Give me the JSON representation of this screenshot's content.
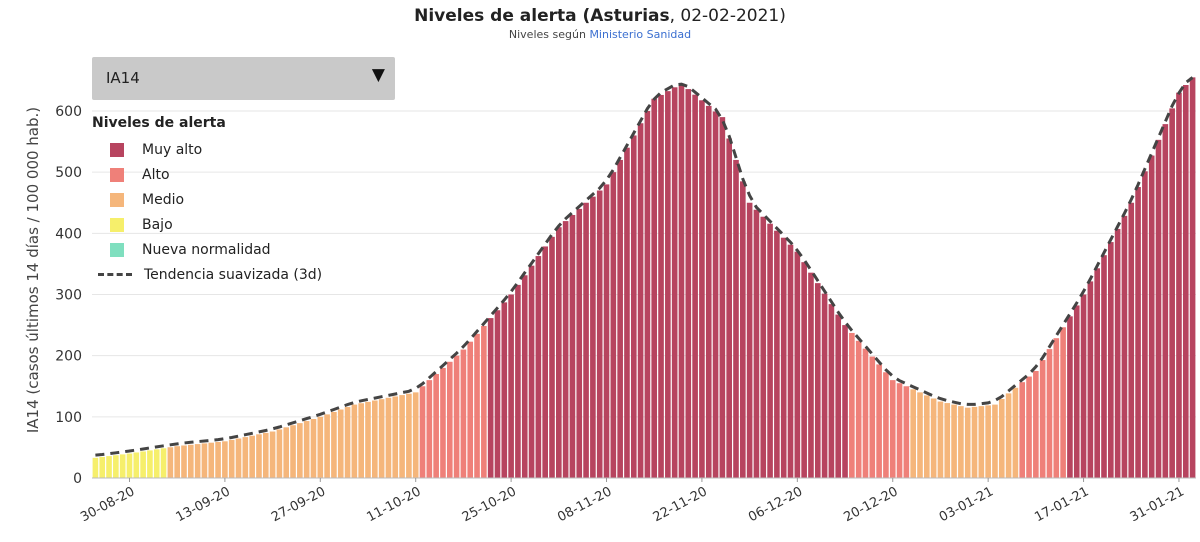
{
  "header": {
    "title_main": "Niveles de alerta (Asturias",
    "title_date": ", 02-02-2021)",
    "subtitle_prefix": "Niveles según ",
    "subtitle_link": "Ministerio Sanidad"
  },
  "dropdown": {
    "selected": "IA14"
  },
  "legend": {
    "heading": "Niveles de alerta",
    "items": [
      {
        "label": "Muy alto",
        "color": "#b7445f"
      },
      {
        "label": "Alto",
        "color": "#ef8079"
      },
      {
        "label": "Medio",
        "color": "#f5b67b"
      },
      {
        "label": "Bajo",
        "color": "#f6ef6b"
      },
      {
        "label": "Nueva normalidad",
        "color": "#7fdfbf"
      }
    ],
    "trend_label": "Tendencia suavizada (3d)"
  },
  "chart_data": {
    "type": "bar",
    "title": "Niveles de alerta (Asturias, 02-02-2021)",
    "subtitle": "Niveles según Ministerio Sanidad",
    "ylabel": "IA14 (casos últimos 14 días / 100 000 hab.)",
    "xlabel": "",
    "ylim": [
      0,
      650
    ],
    "yticks": [
      0,
      100,
      200,
      300,
      400,
      500,
      600
    ],
    "x_start": "2020-08-25",
    "x_end": "2021-02-02",
    "xtick_labels": [
      "30-08-20",
      "13-09-20",
      "27-09-20",
      "11-10-20",
      "25-10-20",
      "08-11-20",
      "22-11-20",
      "06-12-20",
      "20-12-20",
      "03-01-21",
      "17-01-21",
      "31-01-21"
    ],
    "anchors": [
      {
        "date": "2020-08-25",
        "value": 33
      },
      {
        "date": "2020-08-30",
        "value": 40
      },
      {
        "date": "2020-09-06",
        "value": 52
      },
      {
        "date": "2020-09-13",
        "value": 60
      },
      {
        "date": "2020-09-20",
        "value": 76
      },
      {
        "date": "2020-09-27",
        "value": 100
      },
      {
        "date": "2020-10-02",
        "value": 120
      },
      {
        "date": "2020-10-11",
        "value": 140
      },
      {
        "date": "2020-10-18",
        "value": 210
      },
      {
        "date": "2020-10-25",
        "value": 300
      },
      {
        "date": "2020-11-01",
        "value": 410
      },
      {
        "date": "2020-11-08",
        "value": 480
      },
      {
        "date": "2020-11-15",
        "value": 620
      },
      {
        "date": "2020-11-19",
        "value": 645
      },
      {
        "date": "2020-11-25",
        "value": 590
      },
      {
        "date": "2020-11-29",
        "value": 450
      },
      {
        "date": "2020-12-06",
        "value": 370
      },
      {
        "date": "2020-12-13",
        "value": 250
      },
      {
        "date": "2020-12-20",
        "value": 160
      },
      {
        "date": "2020-12-27",
        "value": 125
      },
      {
        "date": "2020-12-31",
        "value": 115
      },
      {
        "date": "2021-01-04",
        "value": 120
      },
      {
        "date": "2021-01-10",
        "value": 175
      },
      {
        "date": "2021-01-17",
        "value": 300
      },
      {
        "date": "2021-01-24",
        "value": 450
      },
      {
        "date": "2021-01-31",
        "value": 630
      },
      {
        "date": "2021-02-02",
        "value": 655
      }
    ],
    "level_thresholds": [
      {
        "level": "Bajo",
        "min": 25,
        "color": "#f6ef6b"
      },
      {
        "level": "Medio",
        "min": 50,
        "color": "#f5b67b"
      },
      {
        "level": "Alto",
        "min": 150,
        "color": "#ef8079"
      },
      {
        "level": "Muy alto",
        "min": 250,
        "color": "#b7445f"
      }
    ],
    "trend": {
      "name": "Tendencia suavizada (3d)",
      "color": "#444444",
      "style": "dashed"
    },
    "grid": true,
    "legend_position": "top-left"
  }
}
